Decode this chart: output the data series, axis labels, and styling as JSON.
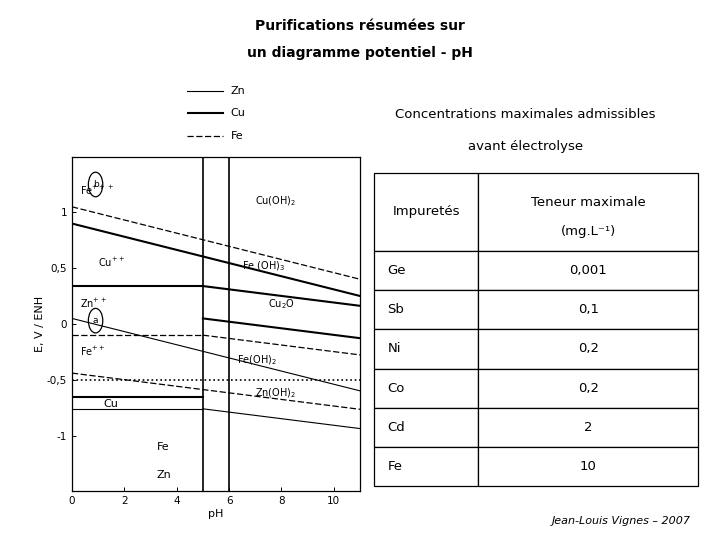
{
  "title_line1": "Purifications résumées sur",
  "title_line2": "un diagramme potentiel - pH",
  "subtitle_line1": "Concentrations maximales admissibles",
  "subtitle_line2": "avant électrolyse",
  "table_header_col1": "Impuretés",
  "table_header_col2": "Teneur maximale\n(mg.L⁻¹)",
  "table_data": [
    [
      "Ge",
      "0,001"
    ],
    [
      "Sb",
      "0,1"
    ],
    [
      "Ni",
      "0,2"
    ],
    [
      "Co",
      "0,2"
    ],
    [
      "Cd",
      "2"
    ],
    [
      "Fe",
      "10"
    ]
  ],
  "footer": "Jean-Louis Vignes – 2007",
  "legend_labels": [
    "Zn",
    "Cu",
    "Fe"
  ],
  "background_color": "#ffffff",
  "text_color": "#000000",
  "diagram_xlim": [
    0,
    11
  ],
  "diagram_ylim": [
    -1.5,
    1.5
  ],
  "diagram_xticks": [
    0,
    2,
    4,
    6,
    8,
    10
  ],
  "diagram_yticks": [
    -1,
    -0.5,
    0,
    0.5,
    1
  ],
  "diagram_ytick_labels": [
    "-1",
    "-0,5",
    "0",
    "0,5",
    "1"
  ]
}
